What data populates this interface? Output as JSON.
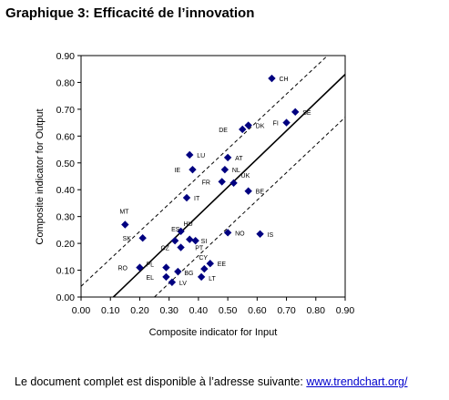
{
  "title": "Graphique 3: Efficacité de l’innovation",
  "footer": {
    "text": "Le document complet est disponible à l’adresse suivante: ",
    "link": "www.trendchart.org/"
  },
  "chart_data": {
    "type": "scatter",
    "xlabel": "Composite indicator for Input",
    "ylabel": "Composite indicator for Output",
    "xlim": [
      0,
      0.9
    ],
    "ylim": [
      0,
      0.9
    ],
    "xticks": [
      "0.00",
      "0.10",
      "0.20",
      "0.30",
      "0.40",
      "0.50",
      "0.60",
      "0.70",
      "0.80",
      "0.90"
    ],
    "yticks": [
      "0.00",
      "0.10",
      "0.20",
      "0.30",
      "0.40",
      "0.50",
      "0.60",
      "0.70",
      "0.80",
      "0.90"
    ],
    "grid": false,
    "marker_color": "#000080",
    "points": [
      {
        "label": "CH",
        "x": 0.65,
        "y": 0.815
      },
      {
        "label": "SE",
        "x": 0.73,
        "y": 0.69
      },
      {
        "label": "FI",
        "x": 0.7,
        "y": 0.65
      },
      {
        "label": "DK",
        "x": 0.57,
        "y": 0.64
      },
      {
        "label": "DE",
        "x": 0.55,
        "y": 0.625
      },
      {
        "label": "LU",
        "x": 0.37,
        "y": 0.53
      },
      {
        "label": "AT",
        "x": 0.5,
        "y": 0.52
      },
      {
        "label": "IE",
        "x": 0.38,
        "y": 0.475
      },
      {
        "label": "NL",
        "x": 0.49,
        "y": 0.475
      },
      {
        "label": "FR",
        "x": 0.48,
        "y": 0.43
      },
      {
        "label": "UK",
        "x": 0.52,
        "y": 0.425
      },
      {
        "label": "BE",
        "x": 0.57,
        "y": 0.395
      },
      {
        "label": "IT",
        "x": 0.36,
        "y": 0.37
      },
      {
        "label": "MT",
        "x": 0.15,
        "y": 0.27
      },
      {
        "label": "HU",
        "x": 0.34,
        "y": 0.245
      },
      {
        "label": "NO",
        "x": 0.5,
        "y": 0.24
      },
      {
        "label": "IS",
        "x": 0.61,
        "y": 0.235
      },
      {
        "label": "SK",
        "x": 0.21,
        "y": 0.22
      },
      {
        "label": "ES",
        "x": 0.32,
        "y": 0.21
      },
      {
        "label": "SI",
        "x": 0.39,
        "y": 0.21
      },
      {
        "label": "PT",
        "x": 0.37,
        "y": 0.215
      },
      {
        "label": "CZ",
        "x": 0.34,
        "y": 0.185
      },
      {
        "label": "CY",
        "x": 0.42,
        "y": 0.105
      },
      {
        "label": "EE",
        "x": 0.44,
        "y": 0.125
      },
      {
        "label": "RO",
        "x": 0.2,
        "y": 0.11
      },
      {
        "label": "PL",
        "x": 0.29,
        "y": 0.11
      },
      {
        "label": "BG",
        "x": 0.33,
        "y": 0.095
      },
      {
        "label": "EL",
        "x": 0.29,
        "y": 0.075
      },
      {
        "label": "LT",
        "x": 0.41,
        "y": 0.075
      },
      {
        "label": "LV",
        "x": 0.31,
        "y": 0.055
      }
    ],
    "trend_lines": [
      {
        "name": "fit",
        "style": "solid",
        "from": [
          0.11,
          0
        ],
        "to": [
          0.9,
          0.83
        ]
      },
      {
        "name": "upper",
        "style": "dashed",
        "from": [
          0,
          0.04
        ],
        "to": [
          0.84,
          0.9
        ]
      },
      {
        "name": "lower",
        "style": "dashed",
        "from": [
          0.25,
          0
        ],
        "to": [
          0.9,
          0.67
        ]
      }
    ]
  }
}
